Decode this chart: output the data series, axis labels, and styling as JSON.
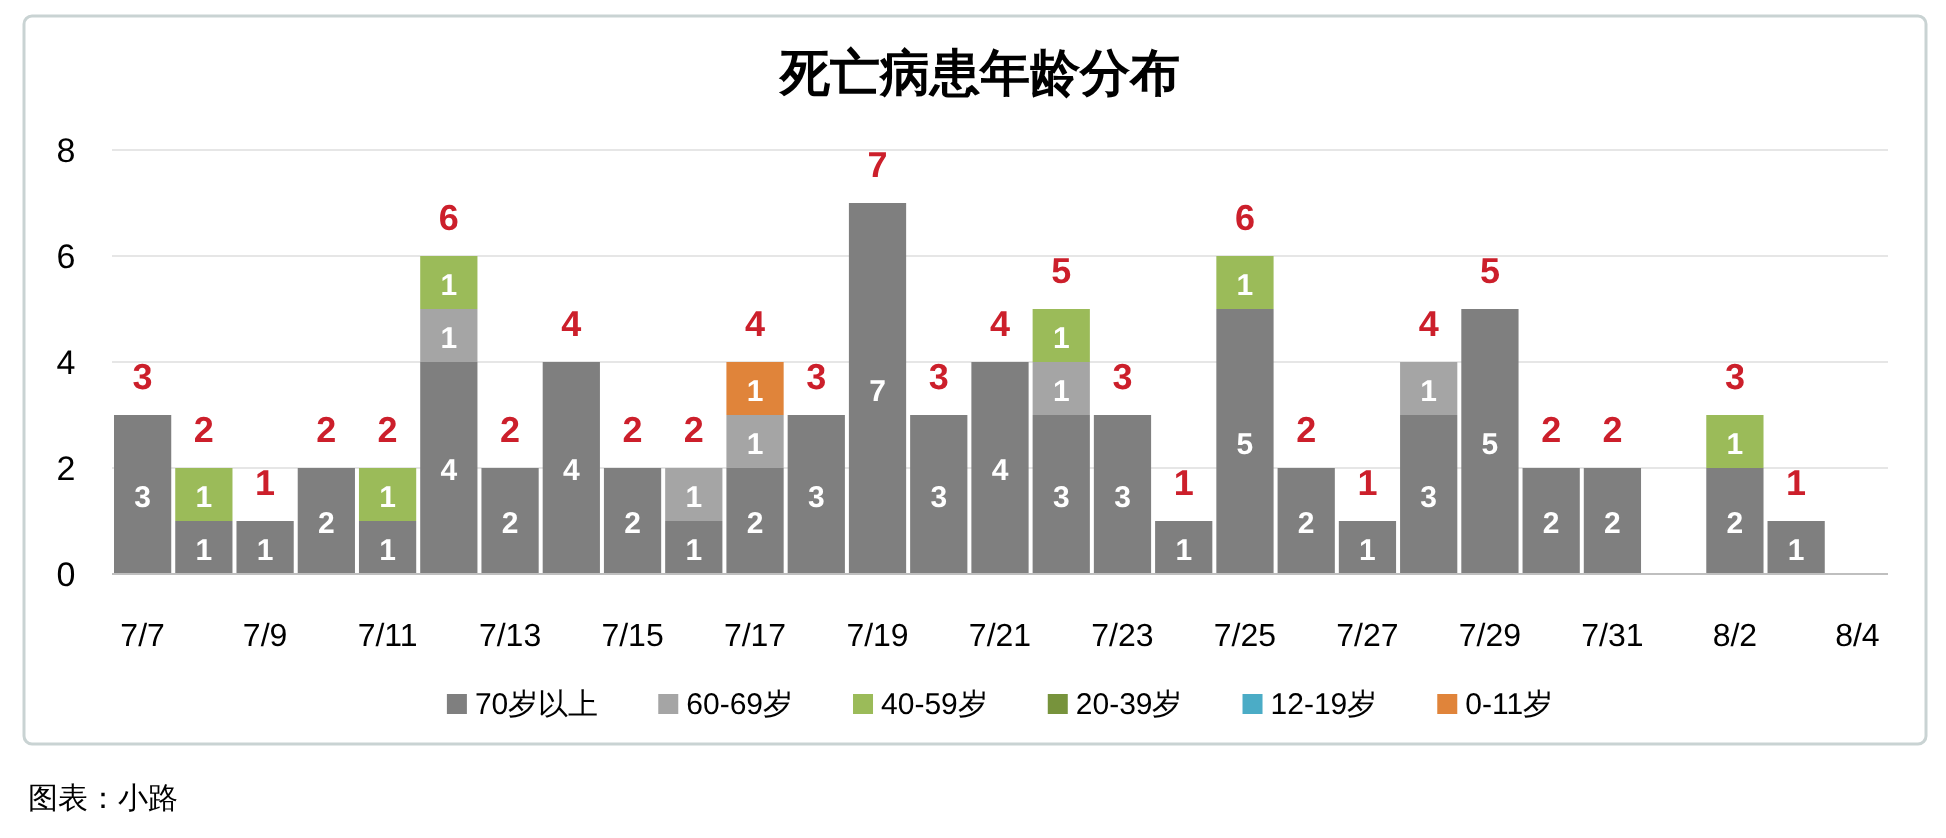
{
  "chart_data": {
    "type": "bar",
    "stacked": true,
    "title": "死亡病患年龄分布",
    "categories": [
      "7/7",
      null,
      "7/9",
      null,
      "7/11",
      null,
      "7/13",
      null,
      "7/15",
      null,
      "7/17",
      null,
      "7/19",
      null,
      "7/21",
      null,
      "7/23",
      null,
      "7/25",
      null,
      "7/27",
      null,
      "7/29",
      null,
      "7/31",
      null,
      "8/2",
      null,
      "8/4"
    ],
    "series": [
      {
        "name": "70岁以上",
        "color": "#7f7f7f",
        "values": [
          3,
          1,
          1,
          2,
          1,
          4,
          2,
          4,
          2,
          1,
          2,
          3,
          7,
          3,
          4,
          3,
          3,
          1,
          5,
          2,
          1,
          3,
          5,
          2,
          2,
          null,
          2,
          1,
          null
        ]
      },
      {
        "name": "60-69岁",
        "color": "#a5a5a5",
        "values": [
          null,
          null,
          null,
          null,
          null,
          1,
          null,
          null,
          null,
          1,
          1,
          null,
          null,
          null,
          null,
          1,
          null,
          null,
          null,
          null,
          null,
          1,
          null,
          null,
          null,
          null,
          null,
          null,
          null
        ]
      },
      {
        "name": "40-59岁",
        "color": "#9bbb59",
        "values": [
          null,
          1,
          null,
          null,
          1,
          1,
          null,
          null,
          null,
          null,
          null,
          null,
          null,
          null,
          null,
          1,
          null,
          null,
          1,
          null,
          null,
          null,
          null,
          null,
          null,
          null,
          1,
          null,
          null
        ]
      },
      {
        "name": "20-39岁",
        "color": "#77933c",
        "values": [
          null,
          null,
          null,
          null,
          null,
          null,
          null,
          null,
          null,
          null,
          null,
          null,
          null,
          null,
          null,
          null,
          null,
          null,
          null,
          null,
          null,
          null,
          null,
          null,
          null,
          null,
          null,
          null,
          null
        ]
      },
      {
        "name": "12-19岁",
        "color": "#4bacc6",
        "values": [
          null,
          null,
          null,
          null,
          null,
          null,
          null,
          null,
          null,
          null,
          null,
          null,
          null,
          null,
          null,
          null,
          null,
          null,
          null,
          null,
          null,
          null,
          null,
          null,
          null,
          null,
          null,
          null,
          null
        ]
      },
      {
        "name": "0-11岁",
        "color": "#e0843a",
        "values": [
          null,
          null,
          null,
          null,
          null,
          null,
          null,
          null,
          null,
          null,
          1,
          null,
          null,
          null,
          null,
          null,
          null,
          null,
          null,
          null,
          null,
          null,
          null,
          null,
          null,
          null,
          null,
          null,
          null
        ]
      }
    ],
    "totals": [
      "3",
      "2",
      "1",
      "2",
      "2",
      "6",
      "2",
      "4",
      "2",
      "2",
      "4",
      "3",
      "7",
      "3",
      "4",
      "5",
      "3",
      "1",
      "6",
      "2",
      "1",
      "4",
      "5",
      "2",
      "2",
      null,
      "3",
      "1",
      null
    ],
    "ylim": [
      0,
      8
    ],
    "yticks": [
      0,
      2,
      4,
      6,
      8
    ],
    "grid": "y",
    "legend": "bottom",
    "data_labels": true,
    "annotations": [
      "图表：小路"
    ]
  }
}
